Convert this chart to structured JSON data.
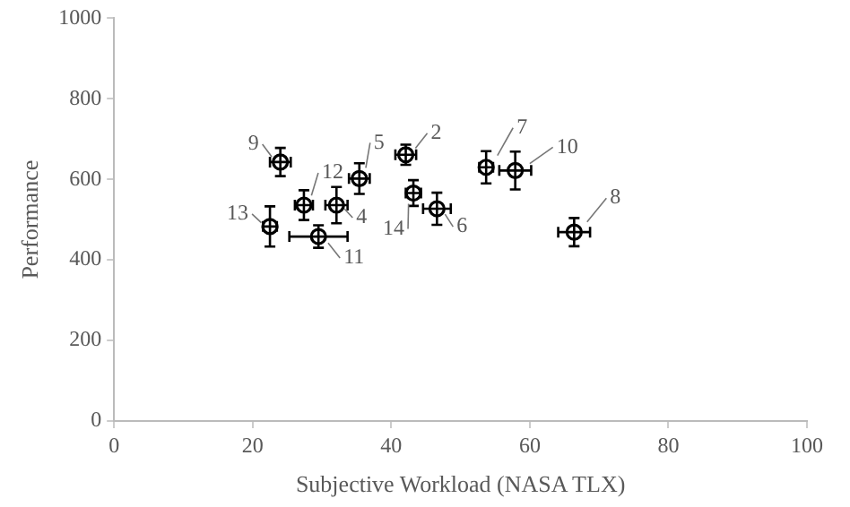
{
  "chart_data": {
    "type": "scatter",
    "xlabel": "Subjective Workload (NASA TLX)",
    "ylabel": "Performance",
    "xlim": [
      0,
      100
    ],
    "xticks": [
      0,
      20,
      40,
      60,
      80,
      100
    ],
    "ylim": [
      0,
      1000
    ],
    "yticks": [
      0,
      200,
      400,
      600,
      800,
      1000
    ],
    "grid": false,
    "legend": false,
    "marker": "circle",
    "series": [
      {
        "color": "#000000",
        "x": [
          42.1,
          32.1,
          35.4,
          46.6,
          53.7,
          66.4,
          24.0,
          57.9,
          29.5,
          27.4,
          22.5,
          43.2
        ],
        "values": [
          661,
          536,
          602,
          527,
          630,
          469,
          643,
          622,
          458,
          536,
          483,
          566
        ],
        "errors": [
          25,
          45,
          38,
          40,
          40,
          35,
          35,
          47,
          28,
          37,
          50,
          32
        ],
        "xerrors": [
          1.5,
          1.6,
          1.5,
          2,
          1,
          2.3,
          1.5,
          2.3,
          4.2,
          1.3,
          1,
          1.1
        ]
      }
    ],
    "annotations": [
      {
        "text": "2",
        "x": 42.1,
        "y": 661
      },
      {
        "text": "4",
        "x": 32.1,
        "y": 536
      },
      {
        "text": "5",
        "x": 35.4,
        "y": 602
      },
      {
        "text": "6",
        "x": 46.6,
        "y": 527
      },
      {
        "text": "7",
        "x": 53.7,
        "y": 630
      },
      {
        "text": "8",
        "x": 66.4,
        "y": 469
      },
      {
        "text": "9",
        "x": 24.0,
        "y": 643
      },
      {
        "text": "10",
        "x": 57.9,
        "y": 622
      },
      {
        "text": "11",
        "x": 29.5,
        "y": 458
      },
      {
        "text": "12",
        "x": 27.4,
        "y": 536
      },
      {
        "text": "13",
        "x": 22.5,
        "y": 483
      },
      {
        "text": "14",
        "x": 43.2,
        "y": 566
      }
    ]
  }
}
